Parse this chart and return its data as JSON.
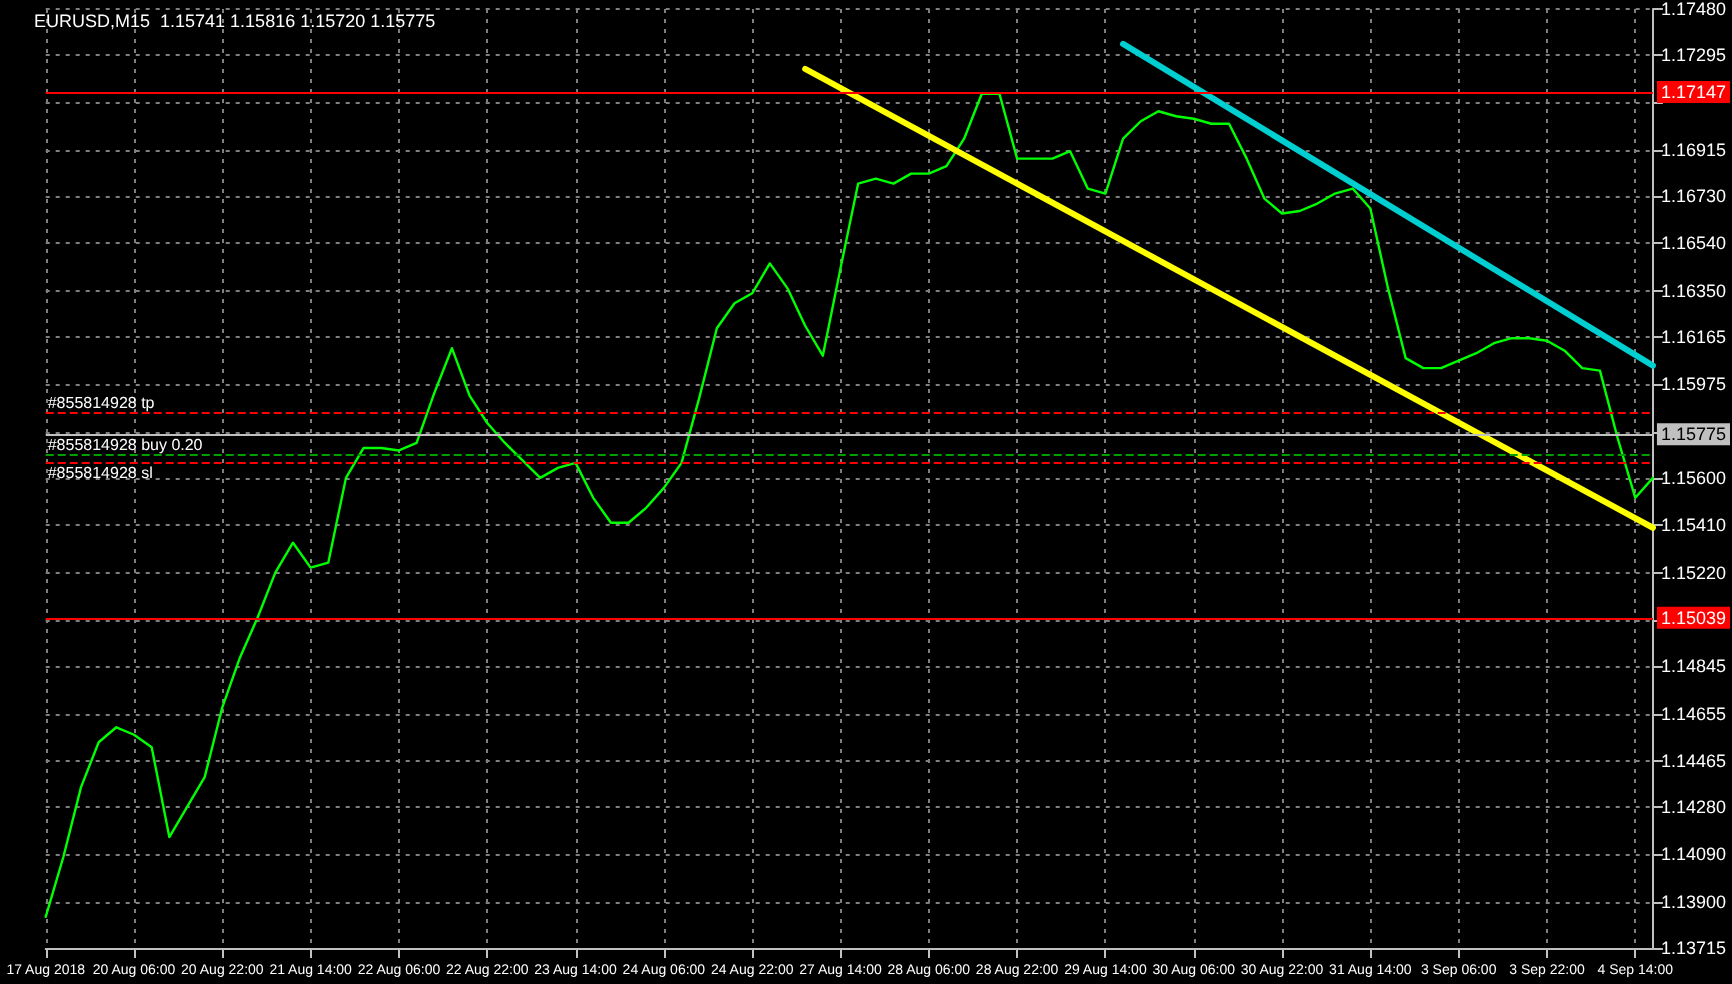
{
  "chart_data": {
    "type": "line",
    "title": "EURUSD,M15  1.15741 1.15816 1.15720 1.15775",
    "categories": [
      "17 Aug 2018",
      null,
      null,
      null,
      null,
      "20 Aug 06:00",
      null,
      null,
      null,
      null,
      "20 Aug 22:00",
      null,
      null,
      null,
      null,
      "21 Aug 14:00",
      null,
      null,
      null,
      null,
      "22 Aug 06:00",
      null,
      null,
      null,
      null,
      "22 Aug 22:00",
      null,
      null,
      null,
      null,
      "23 Aug 14:00",
      null,
      null,
      null,
      null,
      "24 Aug 06:00",
      null,
      null,
      null,
      null,
      "24 Aug 22:00",
      null,
      null,
      null,
      null,
      "27 Aug 14:00",
      null,
      null,
      null,
      null,
      "28 Aug 06:00",
      null,
      null,
      null,
      null,
      "28 Aug 22:00",
      null,
      null,
      null,
      null,
      "29 Aug 14:00",
      null,
      null,
      null,
      null,
      "30 Aug 06:00",
      null,
      null,
      null,
      null,
      "30 Aug 22:00",
      null,
      null,
      null,
      null,
      "31 Aug 14:00",
      null,
      null,
      null,
      null,
      "3 Sep 06:00",
      null,
      null,
      null,
      null,
      "3 Sep 22:00",
      null,
      null,
      null,
      null,
      "4 Sep 14:00",
      null
    ],
    "series": [
      {
        "color": "#00ff00",
        "values": [
          1.1384,
          1.1408,
          1.1436,
          1.1454,
          1.146,
          1.1457,
          1.1452,
          1.1416,
          1.1428,
          1.144,
          1.1468,
          1.1488,
          1.1504,
          1.1522,
          1.1534,
          1.1524,
          1.1526,
          1.156,
          1.1572,
          1.1572,
          1.1571,
          1.1574,
          1.1594,
          1.1612,
          1.1593,
          1.1582,
          1.1574,
          1.1567,
          1.156,
          1.1564,
          1.1566,
          1.1552,
          1.1542,
          1.1542,
          1.1548,
          1.1556,
          1.1566,
          1.1592,
          1.162,
          1.163,
          1.1634,
          1.1646,
          1.1636,
          1.1621,
          1.1609,
          1.1644,
          1.1678,
          1.168,
          1.1678,
          1.1682,
          1.1682,
          1.1685,
          1.1696,
          1.1714,
          1.1714,
          1.1688,
          1.1688,
          1.1688,
          1.1691,
          1.1676,
          1.1674,
          1.1696,
          1.1703,
          1.1707,
          1.1705,
          1.1704,
          1.1702,
          1.1702,
          1.1688,
          1.1672,
          1.1666,
          1.1667,
          1.167,
          1.1674,
          1.1676,
          1.1668,
          1.1636,
          1.1608,
          1.1604,
          1.1604,
          1.1607,
          1.161,
          1.1614,
          1.1616,
          1.1616,
          1.1615,
          1.1611,
          1.1604,
          1.1603,
          1.1576,
          1.1552,
          1.156
        ]
      },
      {
        "color": "#ffff00",
        "values": [
          null,
          null,
          null,
          null,
          null,
          null,
          null,
          null,
          null,
          null,
          null,
          null,
          null,
          null,
          null,
          null,
          null,
          null,
          null,
          null,
          null,
          null,
          null,
          null,
          null,
          null,
          null,
          null,
          null,
          null,
          null,
          null,
          null,
          null,
          null,
          null,
          null,
          null,
          null,
          null,
          null,
          null,
          null,
          1.1724,
          null,
          null,
          null,
          null,
          null,
          null,
          null,
          null,
          null,
          null,
          null,
          null,
          null,
          null,
          null,
          null,
          null,
          null,
          null,
          null,
          null,
          null,
          null,
          null,
          null,
          null,
          null,
          null,
          null,
          null,
          null,
          null,
          null,
          null,
          null,
          null,
          null,
          null,
          null,
          null,
          null,
          null,
          null,
          null,
          null,
          null,
          null,
          1.154
        ]
      },
      {
        "color": "#00ced1",
        "values": [
          null,
          null,
          null,
          null,
          null,
          null,
          null,
          null,
          null,
          null,
          null,
          null,
          null,
          null,
          null,
          null,
          null,
          null,
          null,
          null,
          null,
          null,
          null,
          null,
          null,
          null,
          null,
          null,
          null,
          null,
          null,
          null,
          null,
          null,
          null,
          null,
          null,
          null,
          null,
          null,
          null,
          null,
          null,
          null,
          null,
          null,
          null,
          null,
          null,
          null,
          null,
          null,
          null,
          null,
          null,
          null,
          null,
          null,
          null,
          null,
          null,
          1.1734,
          null,
          null,
          null,
          null,
          null,
          null,
          null,
          null,
          null,
          null,
          null,
          null,
          null,
          null,
          null,
          null,
          null,
          null,
          null,
          null,
          null,
          null,
          null,
          null,
          null,
          null,
          null,
          null,
          null,
          1.1605
        ]
      }
    ],
    "ylim": [
      1.13715,
      1.1748
    ],
    "yticks": [
      {
        "value": 1.1748,
        "label": "1.17480"
      },
      {
        "value": 1.17295,
        "label": "1.17295"
      },
      {
        "value": 1.17105,
        "label": null
      },
      {
        "value": 1.16915,
        "label": "1.16915"
      },
      {
        "value": 1.1673,
        "label": "1.16730"
      },
      {
        "value": 1.1654,
        "label": "1.16540"
      },
      {
        "value": 1.1635,
        "label": "1.16350"
      },
      {
        "value": 1.16165,
        "label": "1.16165"
      },
      {
        "value": 1.15975,
        "label": "1.15975"
      },
      {
        "value": 1.15785,
        "label": null
      },
      {
        "value": 1.156,
        "label": "1.15600"
      },
      {
        "value": 1.1541,
        "label": "1.15410"
      },
      {
        "value": 1.1522,
        "label": "1.15220"
      },
      {
        "value": 1.1503,
        "label": null
      },
      {
        "value": 1.14845,
        "label": "1.14845"
      },
      {
        "value": 1.14655,
        "label": "1.14655"
      },
      {
        "value": 1.14465,
        "label": "1.14465"
      },
      {
        "value": 1.1428,
        "label": "1.14280"
      },
      {
        "value": 1.1409,
        "label": "1.14090"
      },
      {
        "value": 1.139,
        "label": "1.13900"
      },
      {
        "value": 1.13715,
        "label": "1.13715"
      }
    ],
    "ref_lines": [
      {
        "axis": "y",
        "value": 1.17147,
        "label": "1.17147",
        "color": "#ff0000",
        "line_style": "solid"
      },
      {
        "axis": "y",
        "value": 1.15039,
        "label": "1.15039",
        "color": "#ff0000",
        "line_style": "solid"
      },
      {
        "axis": "y",
        "value": 1.15775,
        "label": "1.15775",
        "color": "#c0c0c0",
        "line_style": "solid"
      },
      {
        "axis": "y",
        "value": 1.1586,
        "label": "#855814928 tp",
        "color": "#ff0000",
        "line_style": "dashed"
      },
      {
        "axis": "y",
        "value": 1.1569,
        "label": "#855814928 buy 0.20",
        "color": "#00a000",
        "line_style": "dashed"
      },
      {
        "axis": "y",
        "value": 1.1566,
        "label": "#855814928 sl",
        "color": "#ff0000",
        "line_style": "dashed"
      }
    ],
    "grid": true,
    "marker": "none",
    "line_style": "solid"
  }
}
